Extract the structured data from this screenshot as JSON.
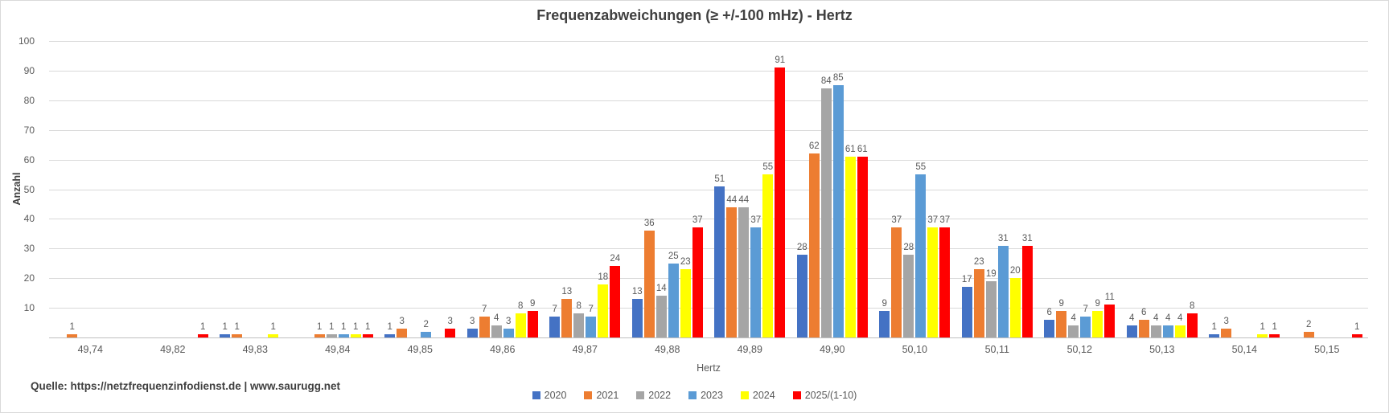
{
  "source_line": "Quelle: https://netzfrequenzinfodienst.de | www.saurugg.net",
  "chart_data": {
    "type": "bar",
    "title": "Frequenzabweichungen (≥ +/-100 mHz) - Hertz",
    "xlabel": "Hertz",
    "ylabel": "Anzahl",
    "ylim": [
      0,
      100
    ],
    "yticks": [
      10,
      20,
      30,
      40,
      50,
      60,
      70,
      80,
      90,
      100
    ],
    "grid": true,
    "legend_position": "bottom",
    "data_label_color": "#595959",
    "gridline_color": "#d9d9d9",
    "categories": [
      "49,74",
      "49,82",
      "49,83",
      "49,84",
      "49,85",
      "49,86",
      "49,87",
      "49,88",
      "49,89",
      "49,90",
      "50,10",
      "50,11",
      "50,12",
      "50,13",
      "50,14",
      "50,15"
    ],
    "series": [
      {
        "name": "2020",
        "color": "#4472C4",
        "values": [
          0,
          0,
          1,
          0,
          1,
          3,
          7,
          13,
          51,
          28,
          9,
          17,
          6,
          4,
          1,
          0
        ]
      },
      {
        "name": "2021",
        "color": "#ED7D31",
        "values": [
          1,
          0,
          1,
          1,
          3,
          7,
          13,
          36,
          44,
          62,
          37,
          23,
          9,
          6,
          3,
          2
        ]
      },
      {
        "name": "2022",
        "color": "#A5A5A5",
        "values": [
          0,
          0,
          0,
          1,
          0,
          4,
          8,
          14,
          44,
          84,
          28,
          19,
          4,
          4,
          0,
          0
        ]
      },
      {
        "name": "2023",
        "color": "#5B9BD5",
        "values": [
          0,
          0,
          0,
          1,
          2,
          3,
          7,
          25,
          37,
          85,
          55,
          31,
          7,
          4,
          0,
          0
        ]
      },
      {
        "name": "2024",
        "color": "#FFFF00",
        "values": [
          0,
          0,
          1,
          1,
          0,
          8,
          18,
          23,
          55,
          61,
          37,
          20,
          9,
          4,
          1,
          0
        ]
      },
      {
        "name": "2025/(1-10)",
        "color": "#FF0000",
        "values": [
          0,
          1,
          0,
          1,
          3,
          9,
          24,
          37,
          91,
          61,
          37,
          31,
          11,
          8,
          1,
          1
        ]
      }
    ]
  }
}
